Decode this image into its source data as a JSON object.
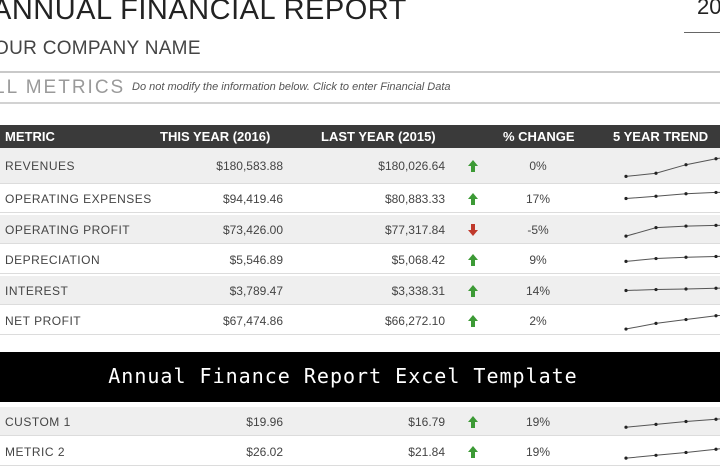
{
  "report": {
    "title": "ANNUAL FINANCIAL REPORT",
    "year_fragment": "20",
    "company": "OUR COMPANY NAME",
    "section_label": "LL METRICS",
    "instruction": "Do not modify the information below. Click to enter Financial Data"
  },
  "table": {
    "headers": [
      "METRIC",
      "THIS YEAR (2016)",
      "LAST YEAR (2015)",
      "% CHANGE",
      "5 YEAR TREND"
    ],
    "rows": [
      {
        "name": "REVENUES",
        "this_year": "$180,583.88",
        "last_year": "$180,026.64",
        "direction": "up",
        "change": "0%",
        "trend": [
          0.1,
          0.22,
          0.55,
          0.78,
          0.95
        ]
      },
      {
        "name": "OPERATING EXPENSES",
        "this_year": "$94,419.46",
        "last_year": "$80,883.33",
        "direction": "up",
        "change": "17%",
        "trend": [
          0.5,
          0.62,
          0.75,
          0.82,
          0.84
        ]
      },
      {
        "name": "OPERATING PROFIT",
        "this_year": "$73,426.00",
        "last_year": "$77,317.84",
        "direction": "down",
        "change": "-5%",
        "trend": [
          0.15,
          0.6,
          0.68,
          0.72,
          0.72
        ]
      },
      {
        "name": "DEPRECIATION",
        "this_year": "$5,546.89",
        "last_year": "$5,068.42",
        "direction": "up",
        "change": "9%",
        "trend": [
          0.4,
          0.55,
          0.62,
          0.66,
          0.7
        ]
      },
      {
        "name": "INTEREST",
        "this_year": "$3,789.47",
        "last_year": "$3,338.31",
        "direction": "up",
        "change": "14%",
        "trend": [
          0.5,
          0.55,
          0.58,
          0.62,
          0.66
        ]
      },
      {
        "name": "NET PROFIT",
        "this_year": "$67,474.86",
        "last_year": "$66,272.10",
        "direction": "up",
        "change": "2%",
        "trend": [
          0.05,
          0.35,
          0.55,
          0.75,
          0.92
        ]
      },
      {
        "name": "CUSTOM 1",
        "this_year": "$19.96",
        "last_year": "$16.79",
        "direction": "up",
        "change": "19%",
        "trend": [
          0.2,
          0.35,
          0.5,
          0.62,
          0.75
        ]
      },
      {
        "name": "METRIC 2",
        "this_year": "$26.02",
        "last_year": "$21.84",
        "direction": "up",
        "change": "19%",
        "trend": [
          0.15,
          0.3,
          0.45,
          0.62,
          0.8
        ]
      }
    ]
  },
  "banner": {
    "text": "Annual Finance Report Excel Template"
  },
  "colors": {
    "header_bg": "#3a3a3a",
    "up_arrow": "#3c9a35",
    "down_arrow": "#c0392b",
    "trend_line": "#555555"
  }
}
